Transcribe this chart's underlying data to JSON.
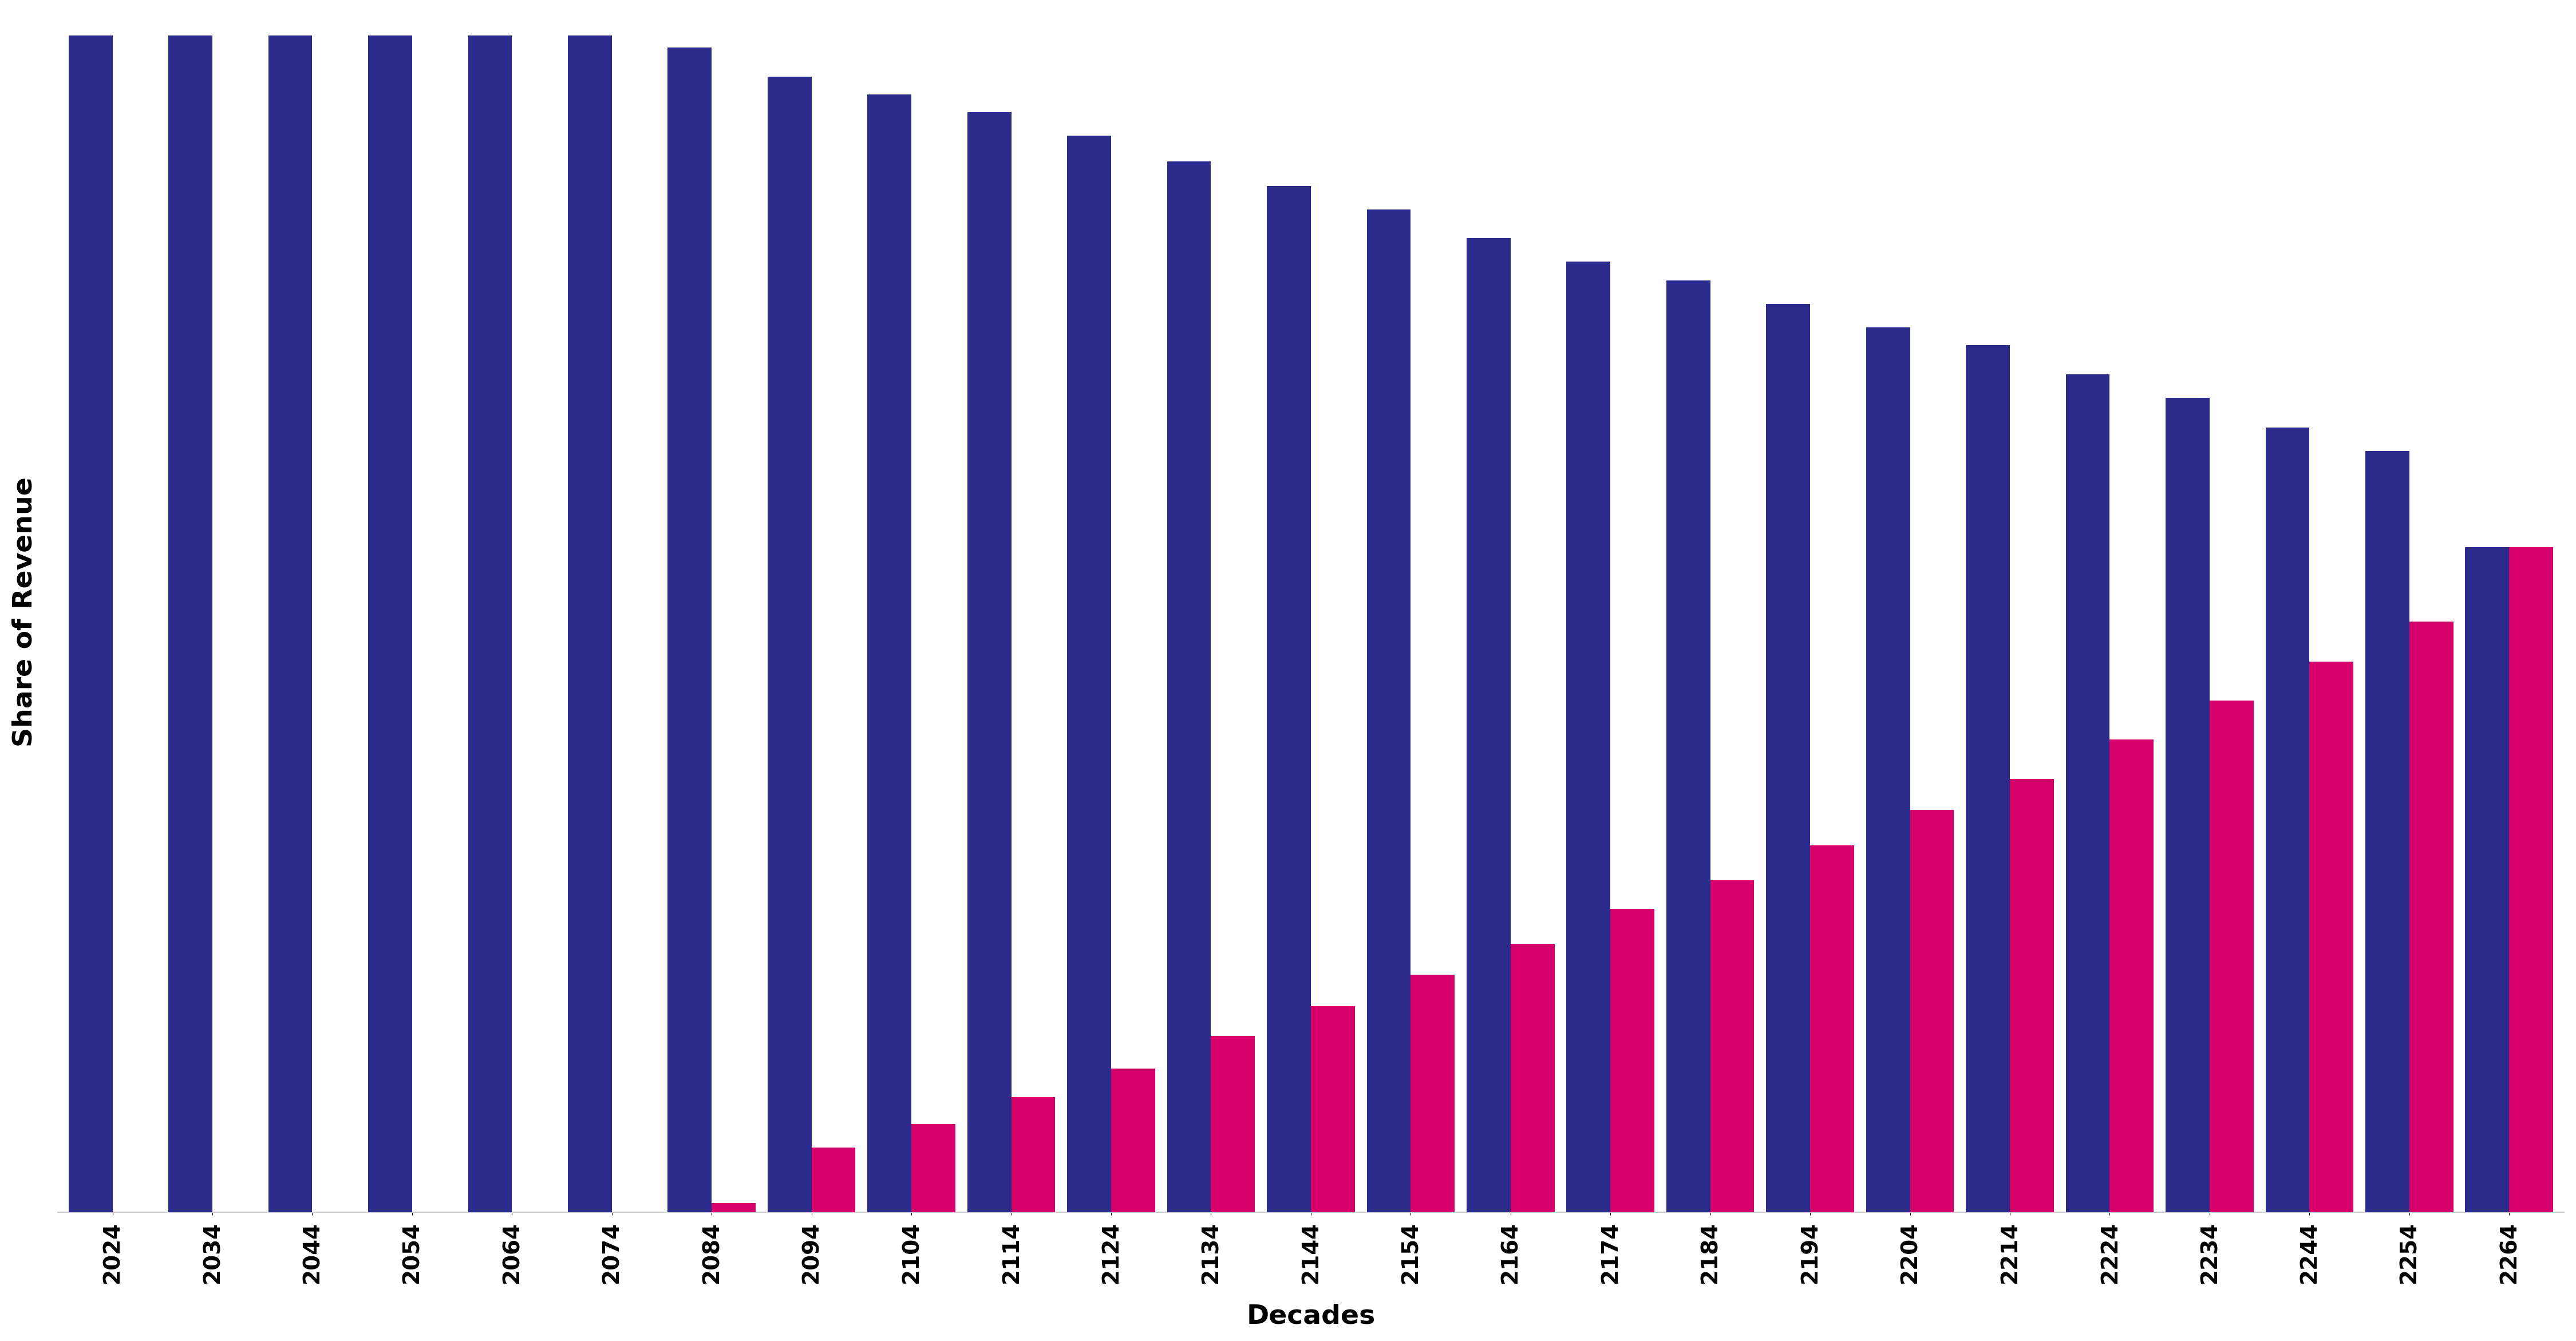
{
  "decades": [
    2024,
    2034,
    2044,
    2054,
    2064,
    2074,
    2084,
    2094,
    2104,
    2114,
    2124,
    2134,
    2144,
    2154,
    2164,
    2174,
    2184,
    2194,
    2204,
    2214,
    2224,
    2234,
    2244,
    2254,
    2264
  ],
  "men_values": [
    1.0,
    1.0,
    1.0,
    1.0,
    1.0,
    1.0,
    0.99,
    0.965,
    0.95,
    0.935,
    0.915,
    0.893,
    0.872,
    0.852,
    0.828,
    0.808,
    0.792,
    0.772,
    0.752,
    0.737,
    0.712,
    0.692,
    0.667,
    0.647,
    0.565
  ],
  "women_values": [
    0.0,
    0.0,
    0.0,
    0.0,
    0.0,
    0.0,
    0.008,
    0.055,
    0.075,
    0.098,
    0.122,
    0.15,
    0.175,
    0.202,
    0.228,
    0.258,
    0.282,
    0.312,
    0.342,
    0.368,
    0.402,
    0.435,
    0.468,
    0.502,
    0.565
  ],
  "men_color": "#2B2B8C",
  "women_color": "#D8006B",
  "xlabel": "Decades",
  "ylabel": "Share of Revenue",
  "background_color": "#FFFFFF",
  "bar_width": 0.44,
  "label_fontsize": 34,
  "tick_fontsize": 28
}
